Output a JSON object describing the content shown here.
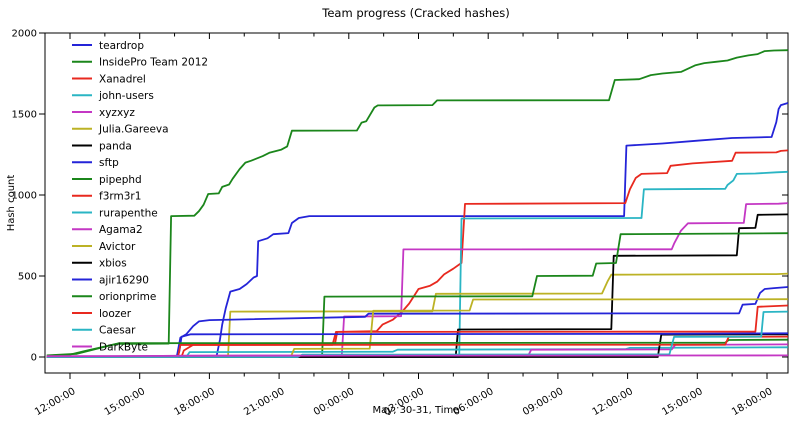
{
  "chart_data": {
    "type": "line",
    "title": "Team progress (Cracked hashes)",
    "xlabel": "May, 30-31, Time",
    "ylabel": "Hash count",
    "x_tick_labels": [
      "12:00:00",
      "15:00:00",
      "18:00:00",
      "21:00:00",
      "00:00:00",
      "03:00:00",
      "06:00:00",
      "09:00:00",
      "12:00:00",
      "15:00:00",
      "18:00:00"
    ],
    "x_tick_hours": [
      0,
      3,
      6,
      9,
      12,
      15,
      18,
      21,
      24,
      27,
      30
    ],
    "y_ticks": [
      0,
      500,
      1000,
      1500,
      2000
    ],
    "ylim": [
      -100,
      2000
    ],
    "xlim_hours": [
      -1.08,
      30.9
    ],
    "grid": false,
    "legend_position": "upper-left",
    "palette": {
      "blue": "#2424d8",
      "green": "#1b861b",
      "red": "#e8291f",
      "cyan": "#2ab5c4",
      "magenta": "#c437c4",
      "yellow": "#bcb225",
      "black": "#000000"
    },
    "series": [
      {
        "name": "teardrop",
        "color": "#2424d8",
        "points": [
          [
            -1,
            0
          ],
          [
            6.3,
            0
          ],
          [
            6.45,
            105
          ],
          [
            6.55,
            200
          ],
          [
            6.7,
            300
          ],
          [
            6.9,
            404
          ],
          [
            7.3,
            420
          ],
          [
            7.6,
            450
          ],
          [
            7.9,
            490
          ],
          [
            8.05,
            500
          ],
          [
            8.1,
            715
          ],
          [
            8.5,
            733
          ],
          [
            8.75,
            758
          ],
          [
            9.4,
            765
          ],
          [
            9.55,
            827
          ],
          [
            9.85,
            858
          ],
          [
            10.3,
            870
          ],
          [
            23.85,
            870
          ],
          [
            23.95,
            1305
          ],
          [
            25.5,
            1318
          ],
          [
            27,
            1335
          ],
          [
            28.5,
            1352
          ],
          [
            30.2,
            1358
          ],
          [
            30.4,
            1450
          ],
          [
            30.5,
            1530
          ],
          [
            30.6,
            1555
          ],
          [
            30.9,
            1568
          ]
        ]
      },
      {
        "name": "InsidePro Team 2012",
        "color": "#1b861b",
        "points": [
          [
            -1,
            8
          ],
          [
            0,
            15
          ],
          [
            0.6,
            35
          ],
          [
            2.0,
            81
          ],
          [
            4.25,
            83
          ],
          [
            4.35,
            870
          ],
          [
            5.35,
            872
          ],
          [
            5.55,
            900
          ],
          [
            5.75,
            940
          ],
          [
            5.95,
            1006
          ],
          [
            6.4,
            1010
          ],
          [
            6.55,
            1050
          ],
          [
            6.85,
            1065
          ],
          [
            7.0,
            1100
          ],
          [
            7.3,
            1160
          ],
          [
            7.55,
            1200
          ],
          [
            7.8,
            1212
          ],
          [
            8.3,
            1240
          ],
          [
            8.6,
            1262
          ],
          [
            9.1,
            1280
          ],
          [
            9.35,
            1300
          ],
          [
            9.55,
            1397
          ],
          [
            12.35,
            1398
          ],
          [
            12.55,
            1447
          ],
          [
            12.75,
            1455
          ],
          [
            13.1,
            1540
          ],
          [
            13.25,
            1553
          ],
          [
            15.6,
            1555
          ],
          [
            15.8,
            1584
          ],
          [
            23.2,
            1585
          ],
          [
            23.45,
            1710
          ],
          [
            24.5,
            1715
          ],
          [
            25.0,
            1740
          ],
          [
            25.5,
            1750
          ],
          [
            26.3,
            1760
          ],
          [
            26.9,
            1800
          ],
          [
            27.3,
            1814
          ],
          [
            27.8,
            1822
          ],
          [
            28.3,
            1830
          ],
          [
            28.7,
            1848
          ],
          [
            29.2,
            1862
          ],
          [
            29.6,
            1870
          ],
          [
            29.9,
            1888
          ],
          [
            30.3,
            1892
          ],
          [
            30.9,
            1894
          ]
        ]
      },
      {
        "name": "Xanadrel",
        "color": "#e8291f",
        "points": [
          [
            -1,
            0
          ],
          [
            4.65,
            0
          ],
          [
            4.7,
            75
          ],
          [
            11.3,
            75
          ],
          [
            11.45,
            155
          ],
          [
            13.2,
            160
          ],
          [
            13.45,
            200
          ],
          [
            13.9,
            230
          ],
          [
            14.3,
            280
          ],
          [
            14.6,
            330
          ],
          [
            15.0,
            420
          ],
          [
            15.5,
            440
          ],
          [
            15.8,
            465
          ],
          [
            16.1,
            510
          ],
          [
            16.5,
            545
          ],
          [
            16.75,
            571
          ],
          [
            16.85,
            580
          ],
          [
            17.0,
            945
          ],
          [
            23.9,
            950
          ],
          [
            24.1,
            1035
          ],
          [
            24.35,
            1105
          ],
          [
            24.6,
            1130
          ],
          [
            25.7,
            1135
          ],
          [
            25.85,
            1180
          ],
          [
            26.8,
            1195
          ],
          [
            27.3,
            1200
          ],
          [
            28.5,
            1211
          ],
          [
            28.65,
            1261
          ],
          [
            30.4,
            1263
          ],
          [
            30.6,
            1272
          ],
          [
            30.9,
            1275
          ]
        ]
      },
      {
        "name": "john-users",
        "color": "#2ab5c4",
        "points": [
          [
            -1,
            0
          ],
          [
            16.75,
            0
          ],
          [
            16.85,
            855
          ],
          [
            24.6,
            858
          ],
          [
            24.7,
            1035
          ],
          [
            28.2,
            1038
          ],
          [
            28.3,
            1062
          ],
          [
            28.55,
            1090
          ],
          [
            28.7,
            1130
          ],
          [
            29.5,
            1133
          ],
          [
            30.4,
            1140
          ],
          [
            30.9,
            1143
          ]
        ]
      },
      {
        "name": "xyzxyz",
        "color": "#c437c4",
        "points": [
          [
            -1,
            0
          ],
          [
            5,
            8
          ],
          [
            11.7,
            10
          ],
          [
            11.8,
            250
          ],
          [
            14.25,
            252
          ],
          [
            14.35,
            664
          ],
          [
            25.9,
            665
          ],
          [
            26.0,
            700
          ],
          [
            26.3,
            780
          ],
          [
            26.6,
            825
          ],
          [
            29.0,
            828
          ],
          [
            29.1,
            944
          ],
          [
            30.5,
            946
          ],
          [
            30.9,
            950
          ]
        ]
      },
      {
        "name": "Julia.Gareeva",
        "color": "#bcb225",
        "points": [
          [
            -1,
            0
          ],
          [
            6.8,
            0
          ],
          [
            6.9,
            280
          ],
          [
            15.6,
            282
          ],
          [
            15.75,
            390
          ],
          [
            22.9,
            392
          ],
          [
            23.15,
            470
          ],
          [
            23.3,
            508
          ],
          [
            30.4,
            512
          ],
          [
            30.9,
            515
          ]
        ]
      },
      {
        "name": "panda",
        "color": "#000000",
        "points": [
          [
            -1,
            0
          ],
          [
            16.6,
            2
          ],
          [
            16.7,
            170
          ],
          [
            23.3,
            172
          ],
          [
            23.4,
            625
          ],
          [
            28.7,
            628
          ],
          [
            28.8,
            795
          ],
          [
            29.5,
            797
          ],
          [
            29.6,
            878
          ],
          [
            30.9,
            880
          ]
        ]
      },
      {
        "name": "sftp",
        "color": "#2424d8",
        "points": [
          [
            -1,
            0
          ],
          [
            4.6,
            5
          ],
          [
            4.75,
            120
          ],
          [
            5.0,
            140
          ],
          [
            5.3,
            190
          ],
          [
            5.55,
            220
          ],
          [
            6.0,
            228
          ],
          [
            12.7,
            248
          ],
          [
            12.85,
            267
          ],
          [
            28.8,
            270
          ],
          [
            28.95,
            323
          ],
          [
            29.5,
            328
          ],
          [
            29.7,
            395
          ],
          [
            29.9,
            420
          ],
          [
            30.3,
            425
          ],
          [
            30.9,
            432
          ]
        ]
      },
      {
        "name": "pipephd",
        "color": "#1b861b",
        "points": [
          [
            -1,
            0
          ],
          [
            8.5,
            5
          ],
          [
            10.85,
            8
          ],
          [
            10.95,
            373
          ],
          [
            19.9,
            375
          ],
          [
            20.1,
            500
          ],
          [
            22.5,
            502
          ],
          [
            22.65,
            577
          ],
          [
            23.5,
            580
          ],
          [
            23.7,
            758
          ],
          [
            30.9,
            764
          ]
        ]
      },
      {
        "name": "f3rm3r1",
        "color": "#e8291f",
        "points": [
          [
            -1,
            0
          ],
          [
            4.8,
            0
          ],
          [
            4.9,
            40
          ],
          [
            5.3,
            75
          ],
          [
            11.4,
            78
          ],
          [
            11.5,
            155
          ],
          [
            29.5,
            157
          ],
          [
            29.6,
            310
          ],
          [
            30.9,
            318
          ]
        ]
      },
      {
        "name": "rurapenthe",
        "color": "#2ab5c4",
        "points": [
          [
            -1,
            0
          ],
          [
            5.0,
            0
          ],
          [
            5.15,
            30
          ],
          [
            13.9,
            33
          ],
          [
            14.1,
            45
          ],
          [
            23.9,
            48
          ],
          [
            24.1,
            56
          ],
          [
            30.9,
            60
          ]
        ]
      },
      {
        "name": "Agama2",
        "color": "#c437c4",
        "points": [
          [
            -1,
            0
          ],
          [
            19.7,
            2
          ],
          [
            19.85,
            45
          ],
          [
            25.9,
            47
          ],
          [
            26.05,
            75
          ],
          [
            30.9,
            78
          ]
        ]
      },
      {
        "name": "Avictor",
        "color": "#bcb225",
        "points": [
          [
            -1,
            0
          ],
          [
            9.5,
            0
          ],
          [
            9.65,
            50
          ],
          [
            12.9,
            52
          ],
          [
            13.05,
            285
          ],
          [
            17.2,
            287
          ],
          [
            17.35,
            355
          ],
          [
            30.9,
            357
          ]
        ]
      },
      {
        "name": "xbios",
        "color": "#000000",
        "points": [
          [
            -1,
            0
          ],
          [
            25.3,
            0
          ],
          [
            25.45,
            138
          ],
          [
            30.9,
            140
          ]
        ]
      },
      {
        "name": "ajir16290",
        "color": "#2424d8",
        "points": [
          [
            -1,
            0
          ],
          [
            4.6,
            0
          ],
          [
            4.7,
            30
          ],
          [
            4.8,
            125
          ],
          [
            5.2,
            140
          ],
          [
            26,
            143
          ],
          [
            30.9,
            146
          ]
        ]
      },
      {
        "name": "orionprime",
        "color": "#1b861b",
        "points": [
          [
            -1,
            10
          ],
          [
            0.3,
            20
          ],
          [
            2.1,
            85
          ],
          [
            28.2,
            88
          ],
          [
            28.35,
            105
          ],
          [
            30.9,
            107
          ]
        ]
      },
      {
        "name": "loozer",
        "color": "#e8291f",
        "points": [
          [
            -1,
            0
          ],
          [
            4.65,
            0
          ],
          [
            4.75,
            75
          ],
          [
            28.2,
            76
          ],
          [
            28.35,
            124
          ],
          [
            30.9,
            126
          ]
        ]
      },
      {
        "name": "Caesar",
        "color": "#2ab5c4",
        "points": [
          [
            -1,
            0
          ],
          [
            9.8,
            0
          ],
          [
            10,
            14
          ],
          [
            25.8,
            16
          ],
          [
            26,
            125
          ],
          [
            29.75,
            126
          ],
          [
            29.85,
            278
          ],
          [
            30.9,
            280
          ]
        ]
      },
      {
        "name": "DarkByte",
        "color": "#c437c4",
        "points": [
          [
            -1,
            5
          ],
          [
            8,
            8
          ],
          [
            30.9,
            10
          ]
        ]
      }
    ]
  }
}
